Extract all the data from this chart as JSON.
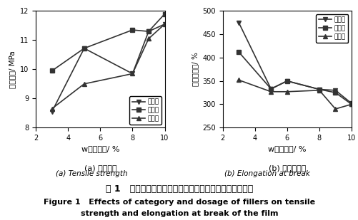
{
  "left_chart": {
    "x": [
      3,
      5,
      8,
      9,
      10
    ],
    "yunmu": [
      8.55,
      10.72,
      9.85,
      11.3,
      11.55
    ],
    "guihuishi": [
      9.95,
      10.72,
      11.35,
      11.3,
      11.9
    ],
    "tansuanqian": [
      8.65,
      9.5,
      9.85,
      11.05,
      11.55
    ],
    "xlabel": "w（填料）/ %",
    "ylabel": "拉伸强度/ MPa",
    "sub_label_cn": "(a) 拉伸强度",
    "sub_label_en": "(a) Tensile strength",
    "ylim": [
      8,
      12
    ],
    "yticks": [
      8,
      9,
      10,
      11,
      12
    ],
    "xlim": [
      2,
      10
    ],
    "xticks": [
      2,
      4,
      6,
      8,
      10
    ]
  },
  "right_chart": {
    "x": [
      3,
      5,
      6,
      8,
      9,
      10
    ],
    "yunmu": [
      475,
      333,
      350,
      332,
      330,
      302
    ],
    "guihuishi": [
      412,
      333,
      350,
      332,
      325,
      300
    ],
    "tansuanqian": [
      352,
      327,
      327,
      330,
      290,
      300
    ],
    "xlabel": "w（填料）/ %",
    "ylabel": "断裂伸长率/ %",
    "sub_label_cn": "(b) 断裂伸长率",
    "sub_label_en": "(b) Elongation at break",
    "ylim": [
      250,
      500
    ],
    "yticks": [
      250,
      300,
      350,
      400,
      450,
      500
    ],
    "xlim": [
      2,
      10
    ],
    "xticks": [
      2,
      4,
      6,
      8,
      10
    ]
  },
  "legend_labels": [
    "云母粉",
    "确灰石",
    "碳酸馒"
  ],
  "fig_caption_cn": "图 1   填料种类和用量对漆膜拉伸强度和断裂伸长率的影响",
  "fig_caption_en_line1": "Figure 1   Effects of category and dosage of fillers on tensile",
  "fig_caption_en_line2": "strength and elongation at break of the film",
  "line_color": "#333333",
  "marker_yunmu": "v",
  "marker_guihuishi": "s",
  "marker_tansuanqian": "^",
  "markersize": 5,
  "linewidth": 1.2
}
